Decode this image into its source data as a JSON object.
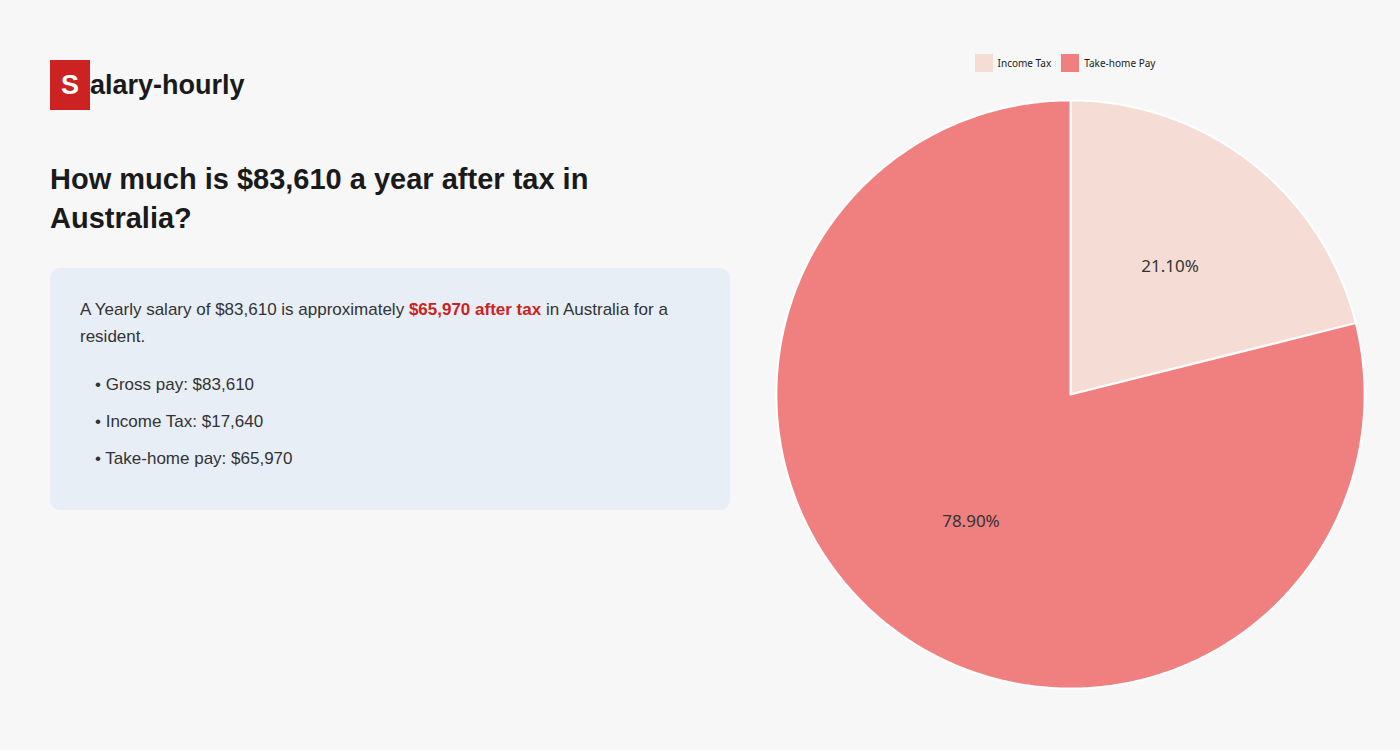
{
  "chart_data": {
    "type": "pie",
    "title": "How much is $83,610 a year after tax in Australia?",
    "annotations": [
      "Salary-hourly",
      "A Yearly salary of $83,610 is approximately",
      "$65,970 after tax",
      "in Australia for a resident.",
      "•  Gross pay: $83,610",
      "•  Income Tax: $17,640",
      "•  Take-home pay: $65,970"
    ],
    "categories": [
      "Income Tax",
      "Take-home Pay"
    ],
    "values": [
      21.1,
      78.9
    ],
    "value_labels": [
      "21.10%",
      "78.90%"
    ],
    "colors": [
      "#f5ddd5",
      "#f08080"
    ],
    "data_labels": true,
    "legend": "top"
  }
}
